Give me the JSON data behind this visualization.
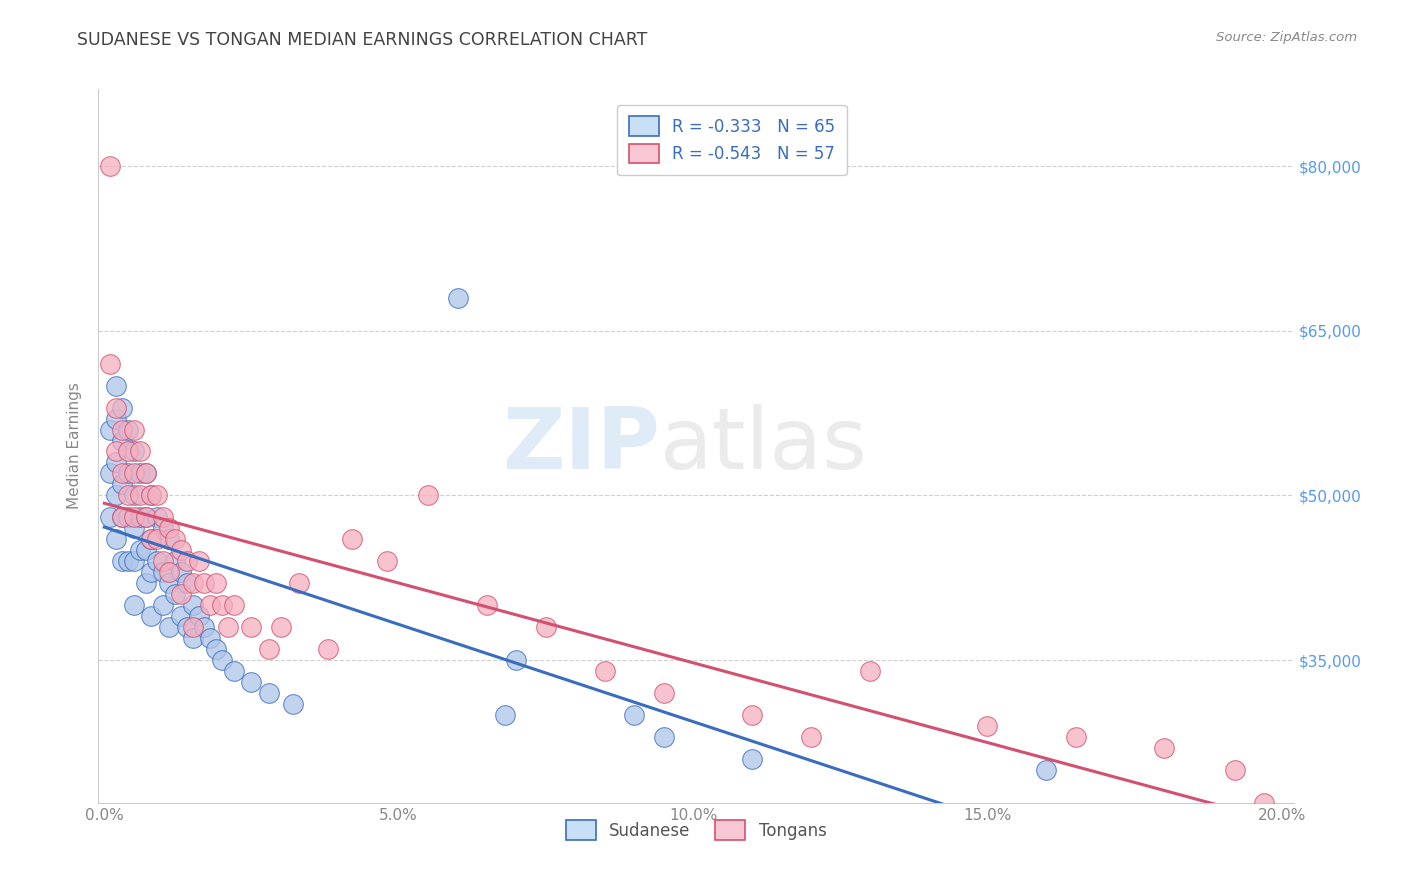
{
  "title": "SUDANESE VS TONGAN MEDIAN EARNINGS CORRELATION CHART",
  "source": "Source: ZipAtlas.com",
  "ylabel": "Median Earnings",
  "xlabel_ticks": [
    "0.0%",
    "5.0%",
    "10.0%",
    "15.0%",
    "20.0%"
  ],
  "xlabel_vals": [
    0.0,
    0.05,
    0.1,
    0.15,
    0.2
  ],
  "ytick_labels": [
    "$35,000",
    "$50,000",
    "$65,000",
    "$80,000"
  ],
  "ytick_vals": [
    35000,
    50000,
    65000,
    80000
  ],
  "ymin": 22000,
  "ymax": 87000,
  "xmin": -0.001,
  "xmax": 0.202,
  "sudanese_R": -0.333,
  "sudanese_N": 65,
  "tongan_R": -0.543,
  "tongan_N": 57,
  "sudanese_color": "#aec6e8",
  "tongan_color": "#f4afc0",
  "sudanese_line_color": "#3a6dbf",
  "tongan_line_color": "#d45070",
  "background_color": "#ffffff",
  "grid_color": "#d0d0d0",
  "title_color": "#444444",
  "right_axis_color": "#5599ee",
  "legend_box_color_sudanese": "#c8dff5",
  "legend_box_color_tongan": "#f8c8d4",
  "sudanese_x": [
    0.001,
    0.001,
    0.001,
    0.002,
    0.002,
    0.002,
    0.002,
    0.002,
    0.003,
    0.003,
    0.003,
    0.003,
    0.003,
    0.004,
    0.004,
    0.004,
    0.004,
    0.005,
    0.005,
    0.005,
    0.005,
    0.005,
    0.006,
    0.006,
    0.006,
    0.007,
    0.007,
    0.007,
    0.007,
    0.008,
    0.008,
    0.008,
    0.008,
    0.009,
    0.009,
    0.01,
    0.01,
    0.01,
    0.011,
    0.011,
    0.011,
    0.012,
    0.012,
    0.013,
    0.013,
    0.014,
    0.014,
    0.015,
    0.015,
    0.016,
    0.017,
    0.018,
    0.019,
    0.02,
    0.022,
    0.025,
    0.028,
    0.032,
    0.06,
    0.068,
    0.07,
    0.09,
    0.095,
    0.11,
    0.16
  ],
  "sudanese_y": [
    56000,
    52000,
    48000,
    60000,
    57000,
    53000,
    50000,
    46000,
    58000,
    55000,
    51000,
    48000,
    44000,
    56000,
    52000,
    48000,
    44000,
    54000,
    50000,
    47000,
    44000,
    40000,
    52000,
    48000,
    45000,
    52000,
    48000,
    45000,
    42000,
    50000,
    46000,
    43000,
    39000,
    48000,
    44000,
    47000,
    43000,
    40000,
    46000,
    42000,
    38000,
    44000,
    41000,
    43000,
    39000,
    42000,
    38000,
    40000,
    37000,
    39000,
    38000,
    37000,
    36000,
    35000,
    34000,
    33000,
    32000,
    31000,
    68000,
    30000,
    35000,
    30000,
    28000,
    26000,
    25000
  ],
  "tongan_x": [
    0.001,
    0.001,
    0.002,
    0.002,
    0.003,
    0.003,
    0.003,
    0.004,
    0.004,
    0.005,
    0.005,
    0.005,
    0.006,
    0.006,
    0.007,
    0.007,
    0.008,
    0.008,
    0.009,
    0.009,
    0.01,
    0.01,
    0.011,
    0.011,
    0.012,
    0.013,
    0.013,
    0.014,
    0.015,
    0.015,
    0.016,
    0.017,
    0.018,
    0.019,
    0.02,
    0.021,
    0.022,
    0.025,
    0.028,
    0.03,
    0.033,
    0.038,
    0.042,
    0.048,
    0.055,
    0.065,
    0.075,
    0.085,
    0.095,
    0.11,
    0.12,
    0.13,
    0.15,
    0.165,
    0.18,
    0.192,
    0.197
  ],
  "tongan_y": [
    80000,
    62000,
    58000,
    54000,
    56000,
    52000,
    48000,
    54000,
    50000,
    56000,
    52000,
    48000,
    54000,
    50000,
    52000,
    48000,
    50000,
    46000,
    50000,
    46000,
    48000,
    44000,
    47000,
    43000,
    46000,
    45000,
    41000,
    44000,
    42000,
    38000,
    44000,
    42000,
    40000,
    42000,
    40000,
    38000,
    40000,
    38000,
    36000,
    38000,
    42000,
    36000,
    46000,
    44000,
    50000,
    40000,
    38000,
    34000,
    32000,
    30000,
    28000,
    34000,
    29000,
    28000,
    27000,
    25000,
    22000
  ]
}
